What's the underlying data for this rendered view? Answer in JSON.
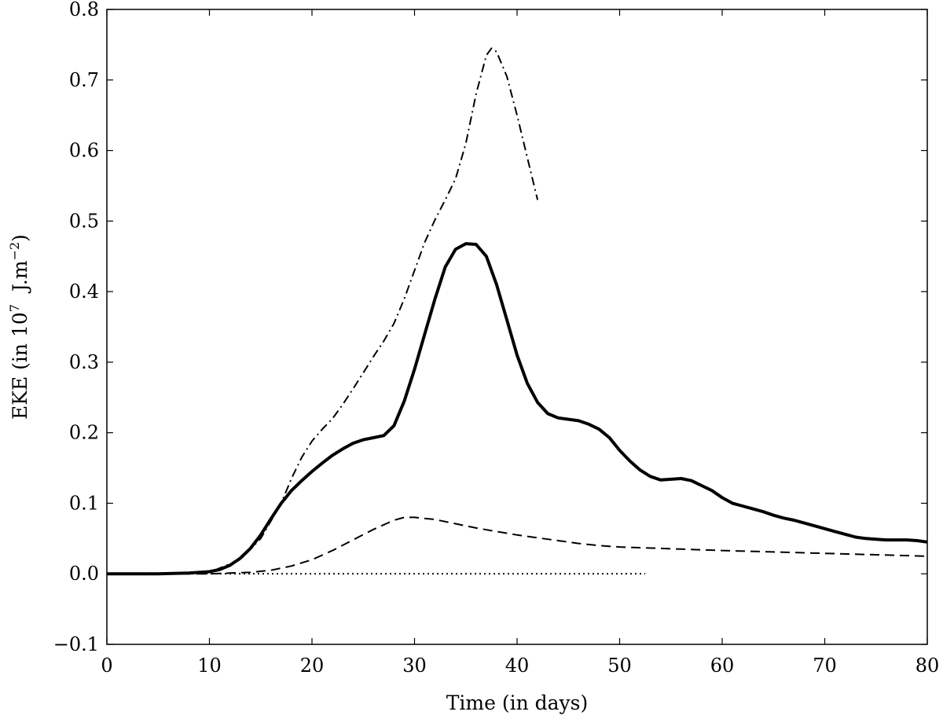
{
  "chart_data": {
    "type": "line",
    "title": "",
    "xlabel": "Time (in days)",
    "ylabel": {
      "prefix": "EKE (in 10",
      "exp1": "7",
      "middle": "  J.m",
      "exp2": "−2",
      "suffix": ")"
    },
    "xlim": [
      0,
      80
    ],
    "ylim": [
      -0.1,
      0.8
    ],
    "xticks": [
      0,
      10,
      20,
      30,
      40,
      50,
      60,
      70,
      80
    ],
    "xtick_labels": [
      "0",
      "10",
      "20",
      "30",
      "40",
      "50",
      "60",
      "70",
      "80"
    ],
    "yticks": [
      -0.1,
      0.0,
      0.1,
      0.2,
      0.3,
      0.4,
      0.5,
      0.6,
      0.7,
      0.8
    ],
    "ytick_labels": [
      "−0.1",
      "0.0",
      "0.1",
      "0.2",
      "0.3",
      "0.4",
      "0.5",
      "0.6",
      "0.7",
      "0.8"
    ],
    "grid": false,
    "series": [
      {
        "name": "solid",
        "style": "solid",
        "x": [
          0,
          5,
          8,
          10,
          11,
          12,
          13,
          14,
          15,
          16,
          17,
          18,
          19,
          20,
          21,
          22,
          23,
          24,
          25,
          26,
          27,
          28,
          29,
          30,
          31,
          32,
          33,
          34,
          35,
          36,
          37,
          38,
          39,
          40,
          41,
          42,
          43,
          44,
          45,
          46,
          47,
          48,
          49,
          50,
          51,
          52,
          53,
          54,
          55,
          56,
          57,
          58,
          59,
          60,
          61,
          62,
          63,
          64,
          65,
          66,
          67,
          68,
          69,
          70,
          71,
          72,
          73,
          74,
          75,
          76,
          77,
          78,
          79,
          80
        ],
        "y": [
          0.0,
          0.0,
          0.001,
          0.003,
          0.006,
          0.012,
          0.022,
          0.036,
          0.055,
          0.078,
          0.1,
          0.118,
          0.132,
          0.145,
          0.157,
          0.168,
          0.177,
          0.185,
          0.19,
          0.193,
          0.196,
          0.21,
          0.245,
          0.29,
          0.34,
          0.39,
          0.435,
          0.46,
          0.468,
          0.467,
          0.45,
          0.41,
          0.36,
          0.31,
          0.27,
          0.243,
          0.227,
          0.221,
          0.219,
          0.217,
          0.212,
          0.205,
          0.193,
          0.175,
          0.16,
          0.147,
          0.138,
          0.133,
          0.134,
          0.135,
          0.132,
          0.125,
          0.118,
          0.108,
          0.1,
          0.096,
          0.092,
          0.088,
          0.083,
          0.079,
          0.076,
          0.072,
          0.068,
          0.064,
          0.06,
          0.056,
          0.052,
          0.05,
          0.049,
          0.048,
          0.048,
          0.048,
          0.047,
          0.045
        ]
      },
      {
        "name": "dashed",
        "style": "dashed",
        "x": [
          0,
          10,
          12,
          14,
          16,
          18,
          20,
          22,
          24,
          26,
          28,
          29,
          30,
          32,
          34,
          36,
          38,
          40,
          42,
          44,
          46,
          48,
          50,
          52,
          54,
          56,
          58,
          60,
          65,
          70,
          75,
          80
        ],
        "y": [
          0.0,
          0.0,
          0.001,
          0.002,
          0.005,
          0.011,
          0.02,
          0.033,
          0.048,
          0.063,
          0.076,
          0.08,
          0.08,
          0.077,
          0.071,
          0.065,
          0.06,
          0.055,
          0.051,
          0.047,
          0.043,
          0.04,
          0.038,
          0.037,
          0.036,
          0.035,
          0.034,
          0.033,
          0.031,
          0.029,
          0.027,
          0.025
        ]
      },
      {
        "name": "dash-dot",
        "style": "dashdot",
        "x": [
          0,
          10,
          13,
          15,
          17,
          18,
          19,
          20,
          21,
          22,
          23,
          24,
          25,
          26,
          27,
          28,
          29,
          30,
          31,
          32,
          33,
          34,
          35,
          36,
          37,
          37.5,
          38,
          39,
          40,
          41,
          42
        ],
        "y": [
          0.0,
          0.002,
          0.02,
          0.05,
          0.1,
          0.135,
          0.165,
          0.188,
          0.205,
          0.22,
          0.24,
          0.262,
          0.285,
          0.308,
          0.33,
          0.355,
          0.39,
          0.43,
          0.47,
          0.502,
          0.53,
          0.56,
          0.61,
          0.68,
          0.735,
          0.745,
          0.74,
          0.705,
          0.65,
          0.59,
          0.53
        ]
      },
      {
        "name": "dotted",
        "style": "dotted",
        "x": [
          0,
          52.5
        ],
        "y": [
          0.0,
          0.0
        ]
      }
    ]
  }
}
